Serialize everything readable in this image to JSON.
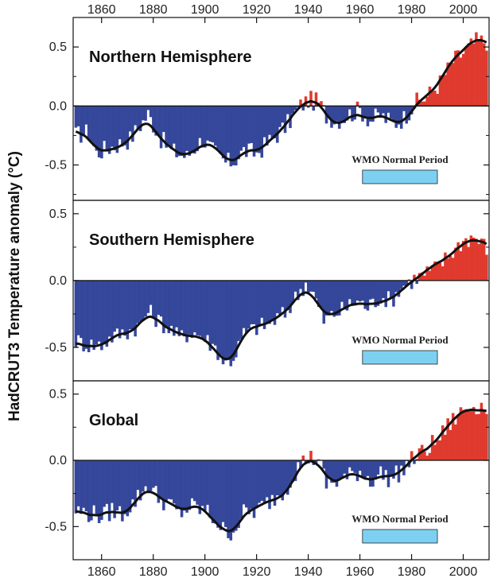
{
  "chart_data": [
    {
      "type": "bar",
      "title": "Northern Hemisphere",
      "ylabel": "HadCRUT3 Temperature anomaly (°C)",
      "xlim": [
        1849,
        2010
      ],
      "ylim": [
        -0.8,
        0.75
      ],
      "yticks": [
        0.5,
        0.0,
        -0.5
      ],
      "xticks": [
        1860,
        1880,
        1900,
        1920,
        1940,
        1960,
        1980,
        2000
      ],
      "positive_color": "#e03a2e",
      "negative_color": "#35479a",
      "smooth_color": "#111111",
      "annotation": {
        "text": "WMO Normal Period",
        "start": 1961,
        "end": 1990,
        "color": "#7ed0f2"
      },
      "series": [
        {
          "name": "annual",
          "x": "1850-2009"
        },
        {
          "name": "smoothed",
          "x": "1850-2009"
        }
      ],
      "keyframes": [
        [
          1850,
          -0.25
        ],
        [
          1855,
          -0.22
        ],
        [
          1858,
          -0.4
        ],
        [
          1862,
          -0.36
        ],
        [
          1866,
          -0.33
        ],
        [
          1871,
          -0.28
        ],
        [
          1878,
          -0.07
        ],
        [
          1883,
          -0.28
        ],
        [
          1887,
          -0.38
        ],
        [
          1893,
          -0.43
        ],
        [
          1899,
          -0.28
        ],
        [
          1903,
          -0.38
        ],
        [
          1908,
          -0.48
        ],
        [
          1911,
          -0.47
        ],
        [
          1915,
          -0.38
        ],
        [
          1920,
          -0.4
        ],
        [
          1925,
          -0.3
        ],
        [
          1931,
          -0.18
        ],
        [
          1937,
          0.0
        ],
        [
          1940,
          0.05
        ],
        [
          1944,
          0.03
        ],
        [
          1947,
          -0.08
        ],
        [
          1951,
          -0.12
        ],
        [
          1955,
          -0.08
        ],
        [
          1960,
          -0.03
        ],
        [
          1964,
          -0.12
        ],
        [
          1968,
          -0.08
        ],
        [
          1973,
          -0.15
        ],
        [
          1977,
          -0.1
        ],
        [
          1981,
          0.02
        ],
        [
          1986,
          0.08
        ],
        [
          1991,
          0.2
        ],
        [
          1996,
          0.38
        ],
        [
          2000,
          0.45
        ],
        [
          2005,
          0.55
        ],
        [
          2009,
          0.55
        ]
      ],
      "noise_amp": 0.085
    },
    {
      "type": "bar",
      "title": "Southern Hemisphere",
      "xlim": [
        1849,
        2010
      ],
      "ylim": [
        -0.75,
        0.6
      ],
      "yticks": [
        0.5,
        0.0,
        -0.5
      ],
      "positive_color": "#e03a2e",
      "negative_color": "#35479a",
      "smooth_color": "#111111",
      "annotation": {
        "text": "WMO Normal Period",
        "start": 1961,
        "end": 1990,
        "color": "#7ed0f2"
      },
      "series": [
        {
          "name": "annual",
          "x": "1850-2009"
        },
        {
          "name": "smoothed",
          "x": "1850-2009"
        }
      ],
      "keyframes": [
        [
          1850,
          -0.45
        ],
        [
          1855,
          -0.48
        ],
        [
          1860,
          -0.48
        ],
        [
          1864,
          -0.42
        ],
        [
          1870,
          -0.38
        ],
        [
          1875,
          -0.33
        ],
        [
          1878,
          -0.23
        ],
        [
          1882,
          -0.3
        ],
        [
          1886,
          -0.35
        ],
        [
          1890,
          -0.43
        ],
        [
          1895,
          -0.38
        ],
        [
          1899,
          -0.42
        ],
        [
          1904,
          -0.5
        ],
        [
          1908,
          -0.62
        ],
        [
          1911,
          -0.58
        ],
        [
          1915,
          -0.4
        ],
        [
          1920,
          -0.35
        ],
        [
          1925,
          -0.32
        ],
        [
          1931,
          -0.25
        ],
        [
          1936,
          -0.1
        ],
        [
          1939,
          -0.02
        ],
        [
          1942,
          -0.1
        ],
        [
          1946,
          -0.3
        ],
        [
          1950,
          -0.25
        ],
        [
          1955,
          -0.2
        ],
        [
          1959,
          -0.15
        ],
        [
          1963,
          -0.2
        ],
        [
          1968,
          -0.12
        ],
        [
          1972,
          -0.15
        ],
        [
          1976,
          -0.05
        ],
        [
          1980,
          0.0
        ],
        [
          1985,
          0.05
        ],
        [
          1990,
          0.1
        ],
        [
          1995,
          0.2
        ],
        [
          2000,
          0.3
        ],
        [
          2004,
          0.33
        ],
        [
          2009,
          0.25
        ]
      ],
      "noise_amp": 0.07
    },
    {
      "type": "bar",
      "title": "Global",
      "xlim": [
        1849,
        2010
      ],
      "ylim": [
        -0.75,
        0.6
      ],
      "yticks": [
        0.5,
        0.0,
        -0.5
      ],
      "positive_color": "#e03a2e",
      "negative_color": "#35479a",
      "smooth_color": "#111111",
      "annotation": {
        "text": "WMO Normal Period",
        "start": 1961,
        "end": 1990,
        "color": "#7ed0f2"
      },
      "series": [
        {
          "name": "annual",
          "x": "1850-2009"
        },
        {
          "name": "smoothed",
          "x": "1850-2009"
        }
      ],
      "keyframes": [
        [
          1850,
          -0.38
        ],
        [
          1855,
          -0.4
        ],
        [
          1860,
          -0.42
        ],
        [
          1864,
          -0.38
        ],
        [
          1868,
          -0.4
        ],
        [
          1872,
          -0.33
        ],
        [
          1878,
          -0.18
        ],
        [
          1882,
          -0.28
        ],
        [
          1886,
          -0.33
        ],
        [
          1890,
          -0.4
        ],
        [
          1895,
          -0.35
        ],
        [
          1900,
          -0.38
        ],
        [
          1904,
          -0.45
        ],
        [
          1908,
          -0.55
        ],
        [
          1911,
          -0.53
        ],
        [
          1915,
          -0.4
        ],
        [
          1920,
          -0.38
        ],
        [
          1925,
          -0.31
        ],
        [
          1931,
          -0.22
        ],
        [
          1936,
          -0.05
        ],
        [
          1940,
          0.02
        ],
        [
          1944,
          0.0
        ],
        [
          1947,
          -0.18
        ],
        [
          1951,
          -0.16
        ],
        [
          1955,
          -0.13
        ],
        [
          1960,
          -0.08
        ],
        [
          1964,
          -0.15
        ],
        [
          1968,
          -0.1
        ],
        [
          1972,
          -0.14
        ],
        [
          1976,
          -0.08
        ],
        [
          1980,
          0.0
        ],
        [
          1985,
          0.07
        ],
        [
          1990,
          0.15
        ],
        [
          1995,
          0.28
        ],
        [
          2000,
          0.38
        ],
        [
          2004,
          0.42
        ],
        [
          2009,
          0.4
        ]
      ],
      "noise_amp": 0.075
    }
  ]
}
